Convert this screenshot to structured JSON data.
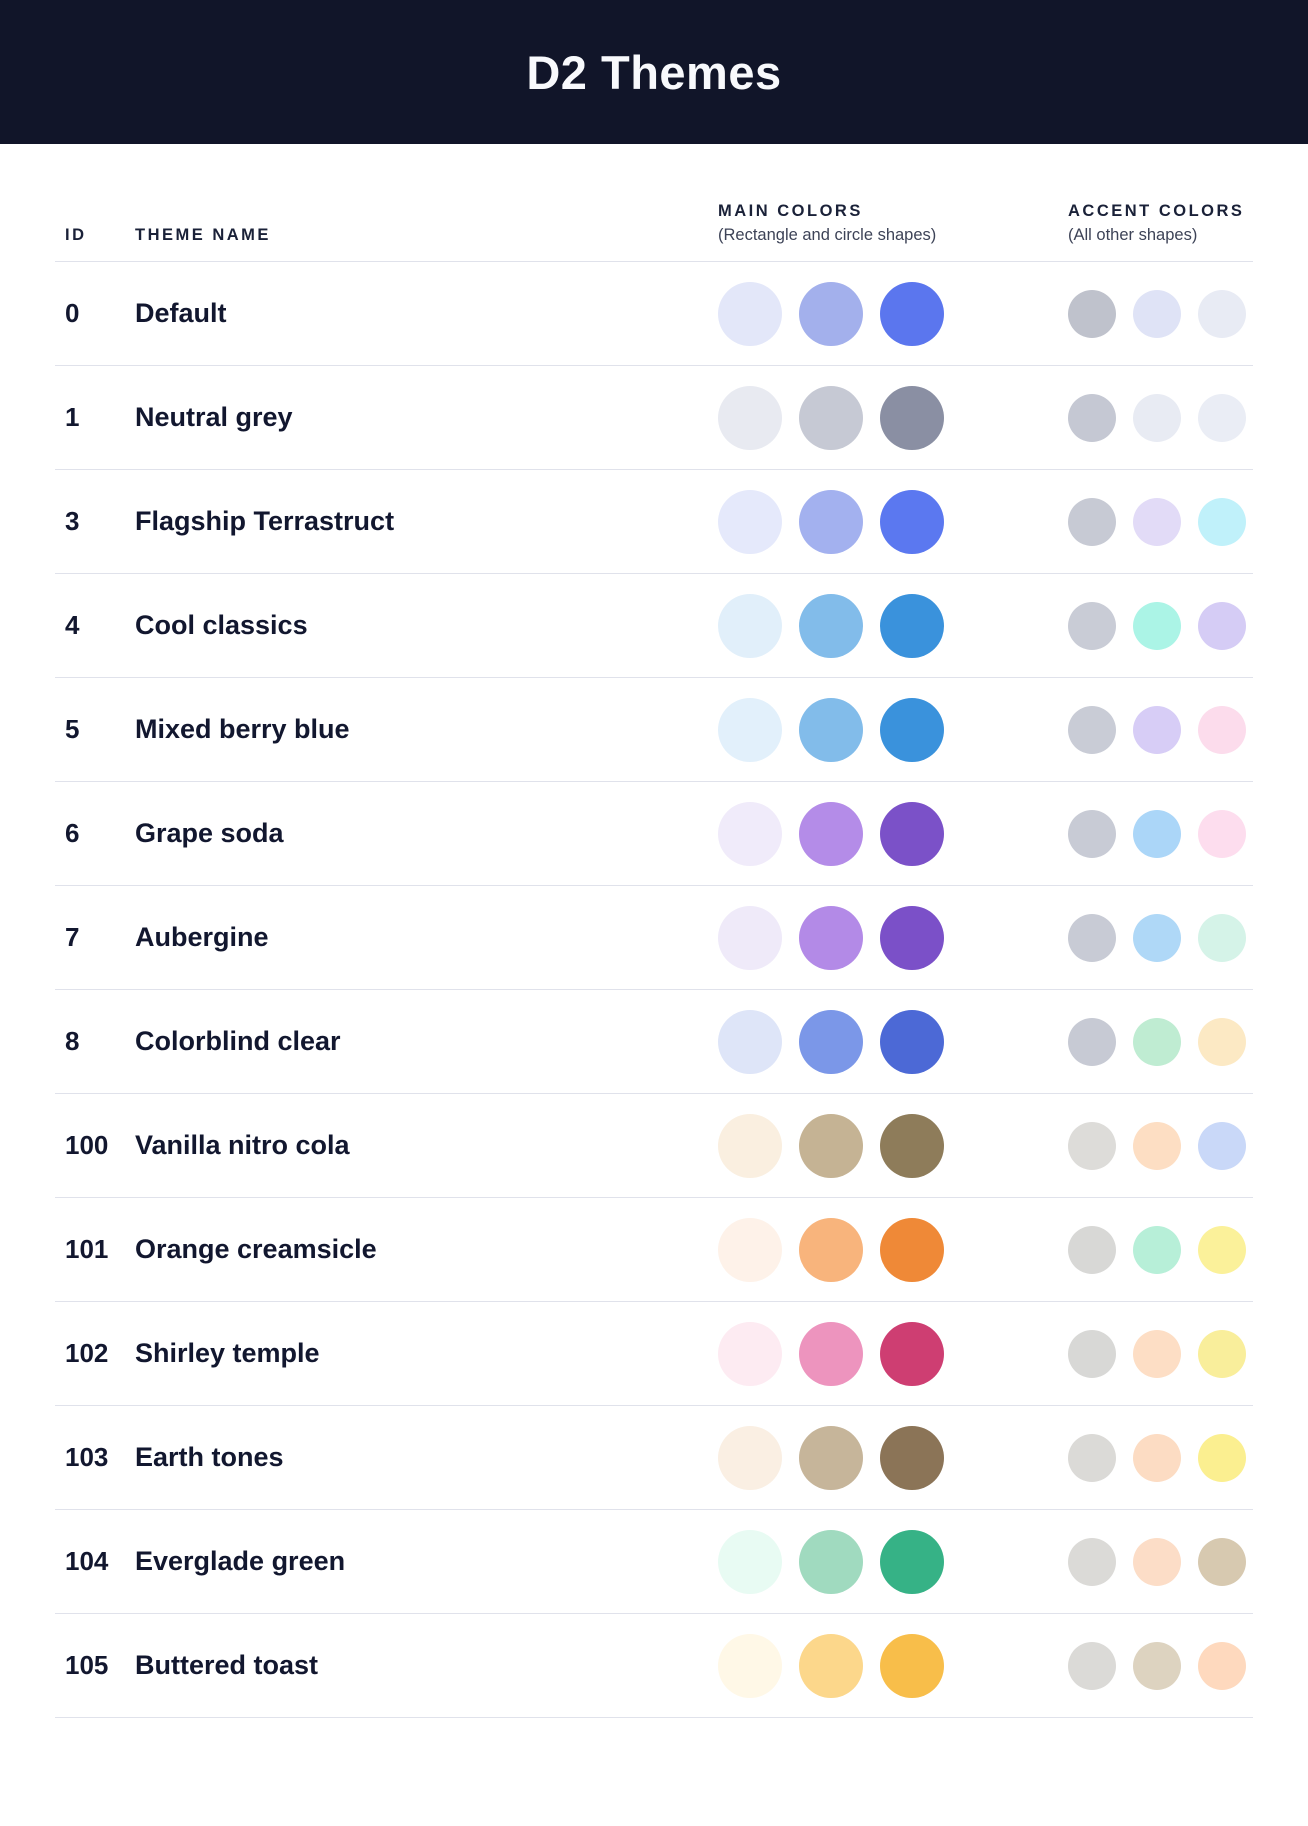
{
  "header": {
    "title": "D2 Themes"
  },
  "colors": {
    "header_background": "#111529",
    "title_text": "#F8F9FC",
    "body_text": "#12172F",
    "divider": "#E0E2EB"
  },
  "table": {
    "columns": {
      "id_label": "ID",
      "name_label": "THEME NAME",
      "main_label": "MAIN COLORS",
      "main_sublabel": "(Rectangle and circle shapes)",
      "accent_label": "ACCENT COLORS",
      "accent_sublabel": "(All other shapes)"
    }
  },
  "themes": [
    {
      "id": "0",
      "name": "Default",
      "main_colors": [
        "#E3E7F9",
        "#A3B0EC",
        "#5B76EE"
      ],
      "accent_colors": [
        "#BFC2CC",
        "#DFE3F6",
        "#E8EBF4"
      ]
    },
    {
      "id": "1",
      "name": "Neutral grey",
      "main_colors": [
        "#E8EAF1",
        "#C6C9D4",
        "#8A8FA3"
      ],
      "accent_colors": [
        "#C5C8D3",
        "#E8EBF3",
        "#EAEDF5"
      ]
    },
    {
      "id": "3",
      "name": "Flagship Terrastruct",
      "main_colors": [
        "#E5E9FB",
        "#A3B1EF",
        "#5B78F0"
      ],
      "accent_colors": [
        "#C7CAD4",
        "#E2DBF7",
        "#C0F1FA"
      ]
    },
    {
      "id": "4",
      "name": "Cool classics",
      "main_colors": [
        "#E1EFFA",
        "#82BCEA",
        "#3A92DC"
      ],
      "accent_colors": [
        "#C9CCD6",
        "#ABF4E6",
        "#D5CCF5"
      ]
    },
    {
      "id": "5",
      "name": "Mixed berry blue",
      "main_colors": [
        "#E2F0FB",
        "#82BCEA",
        "#3A92DC"
      ],
      "accent_colors": [
        "#C9CCD6",
        "#D7CDF6",
        "#FCDCEC"
      ]
    },
    {
      "id": "6",
      "name": "Grape soda",
      "main_colors": [
        "#F0EBFA",
        "#B48CE8",
        "#7B51C8"
      ],
      "accent_colors": [
        "#C8CBD5",
        "#ABD6F8",
        "#FDDDEE"
      ]
    },
    {
      "id": "7",
      "name": "Aubergine",
      "main_colors": [
        "#EFEAF9",
        "#B38AE7",
        "#7B50C8"
      ],
      "accent_colors": [
        "#C8CBD5",
        "#AFD8F7",
        "#D5F3E8"
      ]
    },
    {
      "id": "8",
      "name": "Colorblind clear",
      "main_colors": [
        "#DEE5F8",
        "#7B97E8",
        "#4C69D6"
      ],
      "accent_colors": [
        "#C7CAD4",
        "#BFECD2",
        "#FCE9C4"
      ]
    },
    {
      "id": "100",
      "name": "Vanilla nitro cola",
      "main_colors": [
        "#FAEFE0",
        "#C5B394",
        "#8E7C5A"
      ],
      "accent_colors": [
        "#DDDCD9",
        "#FDDEC3",
        "#C9D8F8"
      ]
    },
    {
      "id": "101",
      "name": "Orange creamsicle",
      "main_colors": [
        "#FEF2E9",
        "#F8B47C",
        "#EF8937"
      ],
      "accent_colors": [
        "#D8D8D6",
        "#B7EFD8",
        "#FBF19A"
      ]
    },
    {
      "id": "102",
      "name": "Shirley temple",
      "main_colors": [
        "#FDEBF2",
        "#ED94BE",
        "#CE3E72"
      ],
      "accent_colors": [
        "#D8D8D6",
        "#FDDEC5",
        "#F9EE9B"
      ]
    },
    {
      "id": "103",
      "name": "Earth tones",
      "main_colors": [
        "#FAEFE3",
        "#C6B59A",
        "#8B7457"
      ],
      "accent_colors": [
        "#DBDAD7",
        "#FCDCC3",
        "#FBEF90"
      ]
    },
    {
      "id": "104",
      "name": "Everglade green",
      "main_colors": [
        "#E8FBF3",
        "#A0DABF",
        "#36B286"
      ],
      "accent_colors": [
        "#DBDAD7",
        "#FCDDC7",
        "#D7C9B0"
      ]
    },
    {
      "id": "105",
      "name": "Buttered toast",
      "main_colors": [
        "#FFF8E7",
        "#FCD78B",
        "#F8BE4A"
      ],
      "accent_colors": [
        "#DBDAD7",
        "#DDD3C0",
        "#FED9BE"
      ]
    }
  ]
}
